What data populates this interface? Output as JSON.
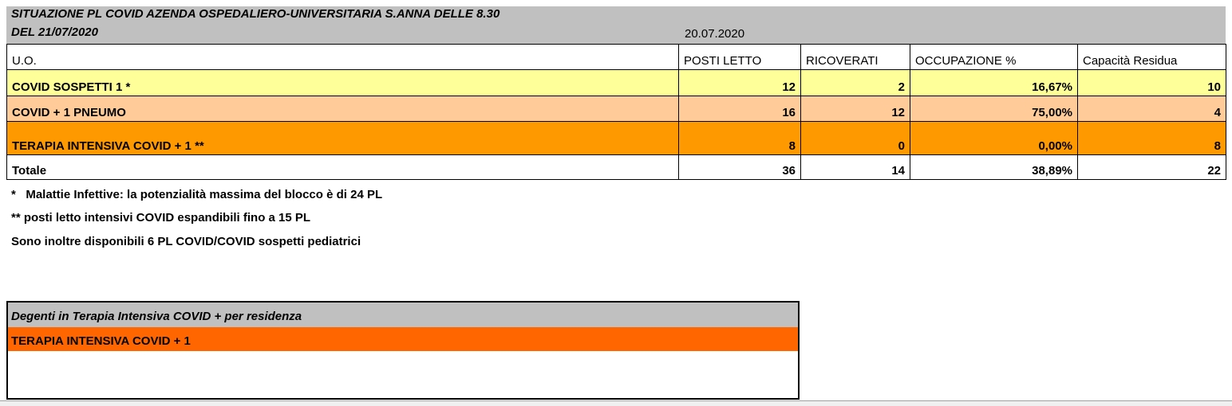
{
  "header": {
    "title_line1": "SITUAZIONE PL COVID AZENDA OSPEDALIERO-UNIVERSITARIA S.ANNA DELLE 8.30",
    "title_line2": "DEL 21/07/2020",
    "date": "20.07.2020"
  },
  "table": {
    "columns": [
      "U.O.",
      "POSTI LETTO",
      "RICOVERATI",
      "OCCUPAZIONE %",
      "Capacità Residua"
    ],
    "rows": [
      {
        "uo": "COVID SOSPETTI 1 *",
        "posti": "12",
        "ricoverati": "2",
        "occupazione": "16,67%",
        "residua": "10",
        "color": "#ffff99"
      },
      {
        "uo": "COVID + 1 PNEUMO",
        "posti": "16",
        "ricoverati": "12",
        "occupazione": "75,00%",
        "residua": "4",
        "color": "#ffcc99"
      },
      {
        "uo": "TERAPIA INTENSIVA COVID + 1 **",
        "posti": "8",
        "ricoverati": "0",
        "occupazione": "0,00%",
        "residua": "8",
        "color": "#ff9900"
      }
    ],
    "total": {
      "uo": "Totale",
      "posti": "36",
      "ricoverati": "14",
      "occupazione": "38,89%",
      "residua": "22"
    }
  },
  "notes": [
    "*   Malattie Infettive: la potenzialità massima del blocco è di 24 PL",
    "** posti letto intensivi COVID espandibili fino a 15 PL",
    "Sono inoltre disponibili 6 PL COVID/COVID sospetti pediatrici"
  ],
  "residence_table": {
    "title": "Degenti in Terapia Intensiva COVID + per residenza",
    "row_label": "TERAPIA INTENSIVA COVID + 1",
    "row_color": "#ff6600"
  }
}
